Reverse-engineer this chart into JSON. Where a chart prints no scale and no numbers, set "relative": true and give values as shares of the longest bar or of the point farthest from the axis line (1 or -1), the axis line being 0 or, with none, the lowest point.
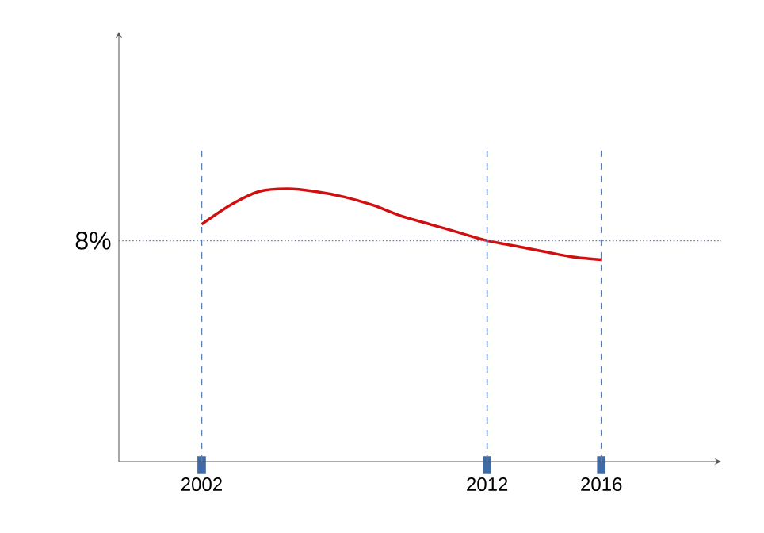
{
  "chart_data": {
    "type": "line",
    "relative": true,
    "xlim": [
      1999.1,
      2020.2
    ],
    "xticks": [
      2002,
      2012,
      2016
    ],
    "x": [
      2002,
      2003,
      2004,
      2005,
      2006,
      2007,
      2008,
      2009,
      2010,
      2011,
      2012,
      2013,
      2014,
      2015,
      2016
    ],
    "series": [
      {
        "color": "#d01010",
        "values": [
          0.87,
          0.94,
          0.99,
          1.0,
          0.99,
          0.97,
          0.94,
          0.9,
          0.87,
          0.84,
          0.81,
          0.79,
          0.77,
          0.75,
          0.74
        ]
      }
    ],
    "ref_lines": [
      {
        "axis": "y",
        "value": 0.81,
        "color": "#5b7fb5",
        "line_style": "dotted"
      },
      {
        "axis": "x",
        "value": 2002,
        "color": "#5b7fb5",
        "line_style": "dashed"
      },
      {
        "axis": "x",
        "value": 2012,
        "color": "#5b7fb5",
        "line_style": "dashed"
      },
      {
        "axis": "x",
        "value": 2016,
        "color": "#5b7fb5",
        "line_style": "dashed"
      }
    ],
    "annotations": [
      "8%"
    ]
  }
}
